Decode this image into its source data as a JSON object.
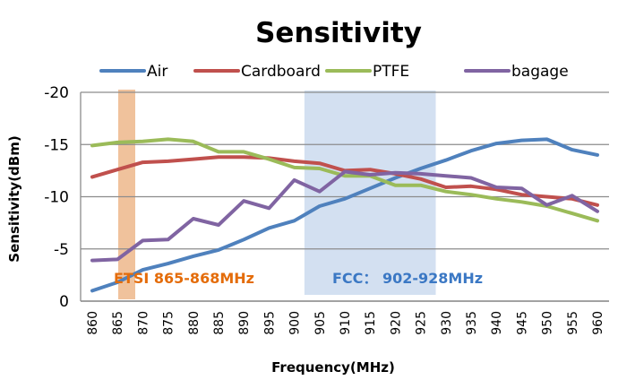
{
  "chart_data": {
    "type": "line",
    "title": "Sensitivity",
    "xlabel": "Frequency(MHz)",
    "ylabel": "Sensitivity(dBm)",
    "x": [
      860,
      865,
      870,
      875,
      880,
      885,
      890,
      895,
      900,
      905,
      910,
      915,
      920,
      925,
      930,
      935,
      940,
      945,
      950,
      955,
      960
    ],
    "x_tick_labels": [
      "860",
      "865",
      "870",
      "875",
      "880",
      "885",
      "890",
      "895",
      "900",
      "905",
      "910",
      "915",
      "920",
      "925",
      "930",
      "935",
      "940",
      "945",
      "950",
      "955",
      "960"
    ],
    "y_tick_labels": [
      "-20",
      "-15",
      "-10",
      "-5",
      "0"
    ],
    "y_ticks": [
      -20,
      -15,
      -10,
      -5,
      0
    ],
    "ylim": [
      0,
      -20
    ],
    "y_axis_reversed": true,
    "grid": "horizontal",
    "legend_position": "top",
    "series": [
      {
        "name": "Air",
        "color": "#4f81bd",
        "values": [
          -1.0,
          -1.8,
          -3.0,
          -3.6,
          -4.3,
          -4.9,
          -5.9,
          -7.0,
          -7.7,
          -9.1,
          -9.8,
          -10.8,
          -11.8,
          -12.7,
          -13.5,
          -14.4,
          -15.1,
          -15.4,
          -15.5,
          -14.5,
          -14.0
        ]
      },
      {
        "name": "Cardboard",
        "color": "#c0504d",
        "values": [
          -11.9,
          -12.6,
          -13.3,
          -13.4,
          -13.6,
          -13.8,
          -13.8,
          -13.7,
          -13.4,
          -13.2,
          -12.5,
          -12.6,
          -12.2,
          -11.7,
          -10.9,
          -11.0,
          -10.7,
          -10.2,
          -10.0,
          -9.8,
          -9.2
        ]
      },
      {
        "name": "PTFE",
        "color": "#9bbb59",
        "values": [
          -14.9,
          -15.2,
          -15.3,
          -15.5,
          -15.3,
          -14.3,
          -14.3,
          -13.6,
          -12.8,
          -12.7,
          -12.0,
          -12.0,
          -11.1,
          -11.1,
          -10.5,
          -10.2,
          -9.8,
          -9.5,
          -9.1,
          -8.4,
          -7.7
        ]
      },
      {
        "name": "bagage",
        "color": "#8064a2",
        "values": [
          -3.9,
          -4.0,
          -5.8,
          -5.9,
          -7.9,
          -7.3,
          -9.6,
          -8.9,
          -11.6,
          -10.5,
          -12.4,
          -12.1,
          -12.3,
          -12.2,
          -12.0,
          -11.8,
          -10.9,
          -10.8,
          -9.2,
          -10.1,
          -8.6
        ]
      }
    ],
    "annotations": [
      {
        "label": "ETSI 865-868MHz",
        "band_from_mhz": 865,
        "band_to_mhz": 868,
        "band_color": "#f0c29c",
        "text_color": "#e46c0a"
      },
      {
        "label": "FCC： 902-928MHz",
        "band_from_mhz": 902,
        "band_to_mhz": 928,
        "band_color": "#d3e0f1",
        "text_color": "#3b78c4"
      }
    ]
  }
}
